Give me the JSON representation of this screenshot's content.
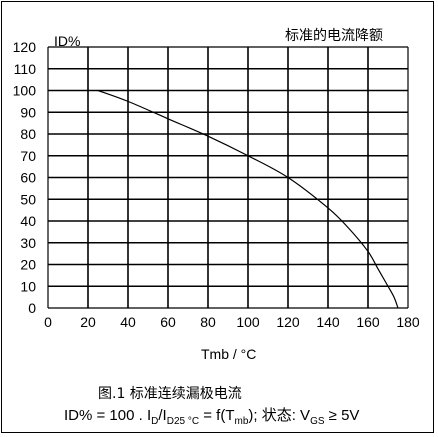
{
  "chart_data": {
    "type": "line",
    "title": "标准的电流降额",
    "ylabel": "ID%",
    "xlabel": "Tmb / °C",
    "xlim": [
      0,
      180
    ],
    "ylim": [
      0,
      120
    ],
    "xticks": [
      0,
      20,
      40,
      60,
      80,
      100,
      120,
      140,
      160,
      180
    ],
    "yticks": [
      0,
      10,
      20,
      30,
      40,
      50,
      60,
      70,
      80,
      90,
      100,
      110,
      120
    ],
    "grid": true,
    "series": [
      {
        "x": [
          25,
          40,
          60,
          80,
          100,
          120,
          140,
          150,
          160,
          165,
          170,
          173,
          175
        ],
        "y": [
          100,
          95,
          87,
          79,
          70,
          60,
          46,
          37,
          26,
          18,
          10,
          5,
          0
        ]
      }
    ]
  },
  "caption": {
    "line1": "图.1  标准连续漏极电流",
    "line2": {
      "lhs": "ID% = 100 . I",
      "sub1": "D",
      "mid": "/I",
      "sub2": "D25 °C",
      "eq": " = f(T",
      "sub3": "mb",
      "rest": "); 状态: V",
      "sub4": "GS",
      "cond": " ≥  5V"
    }
  }
}
